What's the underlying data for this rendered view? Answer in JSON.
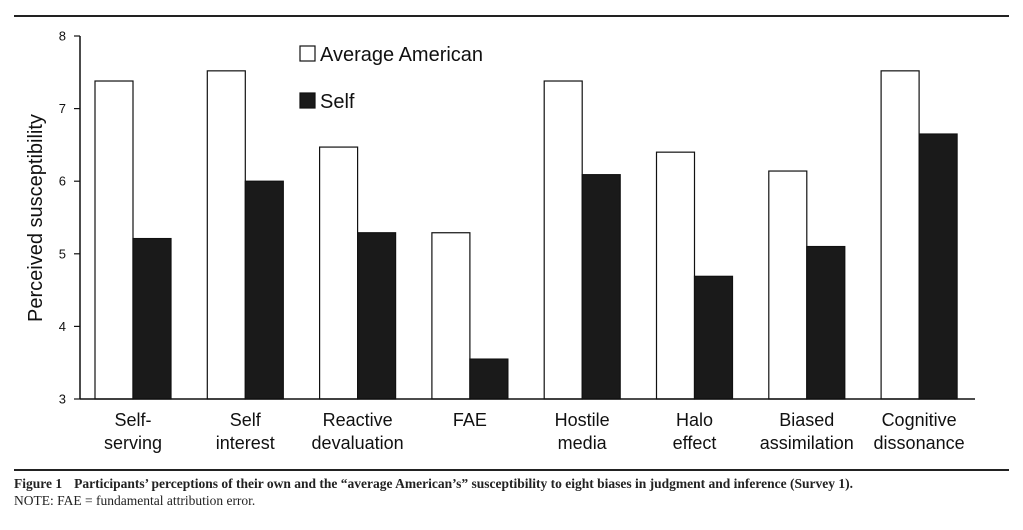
{
  "chart_data": {
    "type": "bar",
    "categories": [
      [
        "Self-",
        "serving"
      ],
      [
        "Self",
        "interest"
      ],
      [
        "Reactive",
        "devaluation"
      ],
      [
        "FAE"
      ],
      [
        "Hostile",
        "media"
      ],
      [
        "Halo",
        "effect"
      ],
      [
        "Biased",
        "assimilation"
      ],
      [
        "Cognitive",
        "dissonance"
      ]
    ],
    "series": [
      {
        "name": "Average American",
        "color": "#ffffff",
        "values": [
          7.38,
          7.52,
          6.47,
          5.29,
          7.38,
          6.4,
          6.14,
          7.52
        ]
      },
      {
        "name": "Self",
        "color": "#1a1a1a",
        "values": [
          5.21,
          6.0,
          5.29,
          3.55,
          6.09,
          4.69,
          5.1,
          6.65
        ]
      }
    ],
    "ylabel": "Perceived susceptibility",
    "ylim": [
      3,
      8
    ],
    "yticks": [
      3,
      4,
      5,
      6,
      7,
      8
    ],
    "legend": "top"
  },
  "caption": {
    "label": "Figure 1",
    "text": "Participants’ perceptions of their own and the “average American’s” susceptibility to eight biases in judgment and inference (Survey 1).",
    "note": "NOTE: FAE = fundamental attribution error."
  }
}
